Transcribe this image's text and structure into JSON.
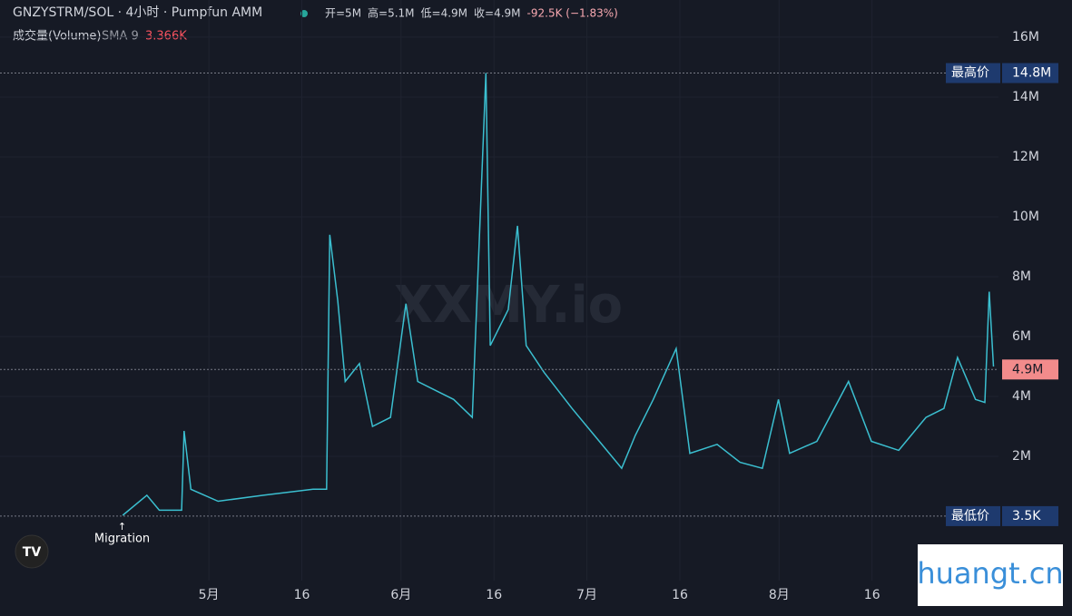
{
  "chart_data": {
    "type": "line",
    "title": "GNZYSTRM/SOL · 4小时 · Pumpfun AMM",
    "ohlc": [
      "开=5M",
      "高=5.1M",
      "低=4.9M",
      "收=4.9M",
      "-92.5K (−1.83%)"
    ],
    "indicator": {
      "name": "成交量(Volume)",
      "sma": "SMA 9",
      "value": "3.366K"
    },
    "watermark": "XXMY.io",
    "badge": "huangt.cn",
    "x": [
      -13.9,
      -10,
      -8,
      -4.4,
      -4,
      -2.9,
      1.5,
      8.8,
      16.8,
      19,
      19.5,
      20.8,
      22,
      24.3,
      26.4,
      29.3,
      31.8,
      33.7,
      36.6,
      39.5,
      42.5,
      44.7,
      45.4,
      48.3,
      49.8,
      51.2,
      54.1,
      58.6,
      62.2,
      66.6,
      68.8,
      71.7,
      75.4,
      77.6,
      82,
      85.7,
      89.3,
      91.9,
      93.7,
      98.1,
      103.2,
      106.9,
      111.3,
      115.7,
      118.6,
      120.8,
      123.7,
      125.2,
      125.9,
      126.6
    ],
    "series": [
      {
        "name": "GNZYSTRM/SOL",
        "color": "#3bbfd0",
        "values": [
          30000,
          700000,
          200000,
          200000,
          2850000,
          900000,
          500000,
          700000,
          900000,
          900000,
          9400000,
          7200000,
          4500000,
          5100000,
          3000000,
          3300000,
          7100000,
          4500000,
          4200000,
          3900000,
          3300000,
          14800000,
          5700000,
          6900000,
          9700000,
          5700000,
          4800000,
          3600000,
          2700000,
          1600000,
          2700000,
          3900000,
          5600000,
          2100000,
          2400000,
          1800000,
          1600000,
          3900000,
          2100000,
          2500000,
          4500000,
          2500000,
          2200000,
          3300000,
          3600000,
          5300000,
          3900000,
          3800000,
          7500000,
          5000000
        ]
      }
    ],
    "xlim": [
      -33.7,
      127.4
    ],
    "xticks": [
      {
        "value": 0,
        "label": "5月"
      },
      {
        "value": 15,
        "label": "16"
      },
      {
        "value": 31,
        "label": "6月"
      },
      {
        "value": 46,
        "label": "16"
      },
      {
        "value": 61,
        "label": "7月"
      },
      {
        "value": 76,
        "label": "16"
      },
      {
        "value": 92,
        "label": "8月"
      },
      {
        "value": 107,
        "label": "16"
      }
    ],
    "ylim": [
      -2150000,
      17240000
    ],
    "yticks": [
      {
        "value": 2000000,
        "label": "2M"
      },
      {
        "value": 4000000,
        "label": "4M"
      },
      {
        "value": 6000000,
        "label": "6M"
      },
      {
        "value": 8000000,
        "label": "8M"
      },
      {
        "value": 10000000,
        "label": "10M"
      },
      {
        "value": 12000000,
        "label": "12M"
      },
      {
        "value": 14000000,
        "label": "14M"
      },
      {
        "value": 16000000,
        "label": "16M"
      }
    ],
    "levels": [
      {
        "name": "最高价",
        "value": 14800000,
        "label": "14.8M",
        "color": "#1e3a6e"
      },
      {
        "name": "最低价",
        "value": 3500,
        "label": "3.5K",
        "color": "#1e3a6e"
      },
      {
        "value": 4900000,
        "label": "4.9M",
        "color": "#f28b8b"
      }
    ],
    "annotation": {
      "x": -14,
      "text": "Migration"
    }
  }
}
